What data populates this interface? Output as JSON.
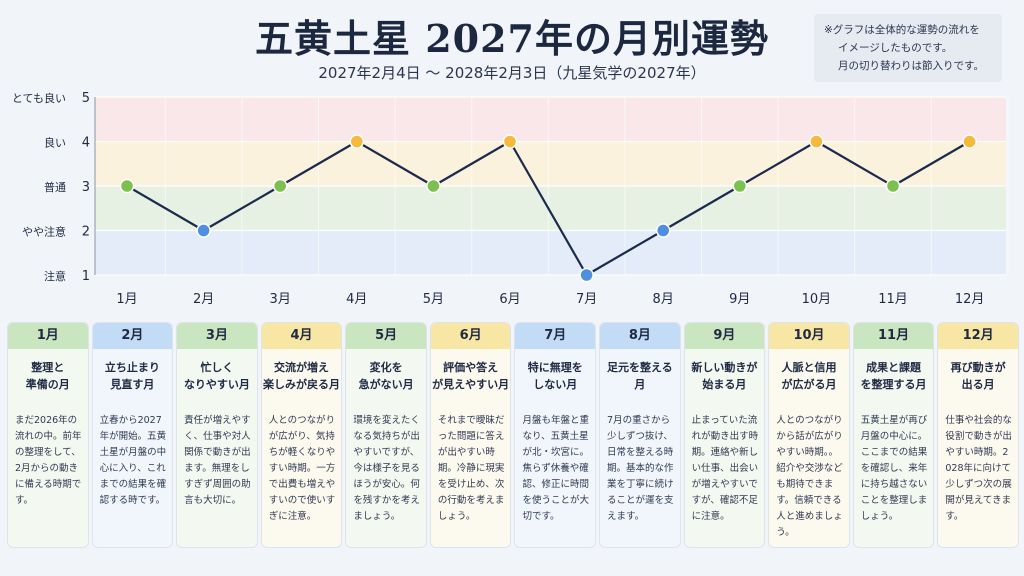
{
  "title": "五黄土星 2027年の月別運勢",
  "subtitle": "2027年2月4日 〜 2028年2月3日（九星気学の2027年）",
  "note": {
    "line1": "※グラフは全体的な運勢の流れを",
    "line2": "イメージしたものです。",
    "line3": "月の切り替わりは節入りです。"
  },
  "colors": {
    "line": "#1c2a4d",
    "band_5": "#fbe3e3",
    "band_4": "#fcf2d2",
    "band_3": "#e2f0dc",
    "band_2": "#dde9f7",
    "marker_good": "#f6b93b",
    "marker_normal": "#7cc04f",
    "marker_caution": "#4f8fe0"
  },
  "chart_data": {
    "type": "line",
    "categories": [
      "1月",
      "2月",
      "3月",
      "4月",
      "5月",
      "6月",
      "7月",
      "8月",
      "9月",
      "10月",
      "11月",
      "12月"
    ],
    "values": [
      3,
      2,
      3,
      4,
      3,
      4,
      1,
      2,
      3,
      4,
      3,
      4
    ],
    "ylim": [
      1,
      5
    ],
    "yticks": [
      1,
      2,
      3,
      4,
      5
    ],
    "ylabels": [
      "注意",
      "やや注意",
      "普通",
      "良い",
      "とても良い"
    ],
    "grid": true
  },
  "cards": [
    {
      "month": "1月",
      "theme": "整理と\n準備の月",
      "desc": "まだ2026年の流れの中。前年の整理をして、2月からの動きに備える時期です。",
      "tone": "green"
    },
    {
      "month": "2月",
      "theme": "立ち止まり\n見直す月",
      "desc": "立春から2027年が開始。五黄土星が月盤の中心に入り、これまでの結果を確認する時です。",
      "tone": "blue"
    },
    {
      "month": "3月",
      "theme": "忙しく\nなりやすい月",
      "desc": "責任が増えやすく、仕事や対人関係で動きが出ます。無理をしすぎず周囲の助言も大切に。",
      "tone": "green"
    },
    {
      "month": "4月",
      "theme": "交流が増え\n楽しみが戻る月",
      "desc": "人とのつながりが広がり、気持ちが軽くなりやすい時期。一方で出費も増えやすいので使いすぎに注意。",
      "tone": "yellow"
    },
    {
      "month": "5月",
      "theme": "変化を\n急がない月",
      "desc": "環境を変えたくなる気持ちが出やすいですが、今は様子を見るほうが安心。何を残すかを考えましょう。",
      "tone": "green"
    },
    {
      "month": "6月",
      "theme": "評価や答え\nが見えやすい月",
      "desc": "それまで曖昧だった問題に答えが出やすい時期。冷静に現実を受け止め、次の行動を考えましょう。",
      "tone": "yellow"
    },
    {
      "month": "7月",
      "theme": "特に無理を\nしない月",
      "desc": "月盤も年盤と重なり、五黄土星が北・坎宮に。焦らず休養や確認、修正に時間を使うことが大切です。",
      "tone": "blue"
    },
    {
      "month": "8月",
      "theme": "足元を整える\n月",
      "desc": "7月の重さから少しずつ抜け、日常を整える時期。基本的な作業を丁寧に続けることが運を支えます。",
      "tone": "blue"
    },
    {
      "month": "9月",
      "theme": "新しい動きが\n始まる月",
      "desc": "止まっていた流れが動き出す時期。連絡や新しい仕事、出会いが増えやすいですが、確認不足に注意。",
      "tone": "green"
    },
    {
      "month": "10月",
      "theme": "人脈と信用\nが広がる月",
      "desc": "人とのつながりから話が広がりやすい時期。。紹介や交渉なども期待できます。信頼できる人と進めましょう。",
      "tone": "yellow"
    },
    {
      "month": "11月",
      "theme": "成果と課題\nを整理する月",
      "desc": "五黄土星が再び月盤の中心に。ここまでの結果を確認し、来年に持ち越さないことを整理しましょう。",
      "tone": "green"
    },
    {
      "month": "12月",
      "theme": "再び動きが\n出る月",
      "desc": "仕事や社会的な役割で動きが出やすい時期。2028年に向けて少しずつ次の展開が見えてきます。",
      "tone": "yellow"
    }
  ]
}
